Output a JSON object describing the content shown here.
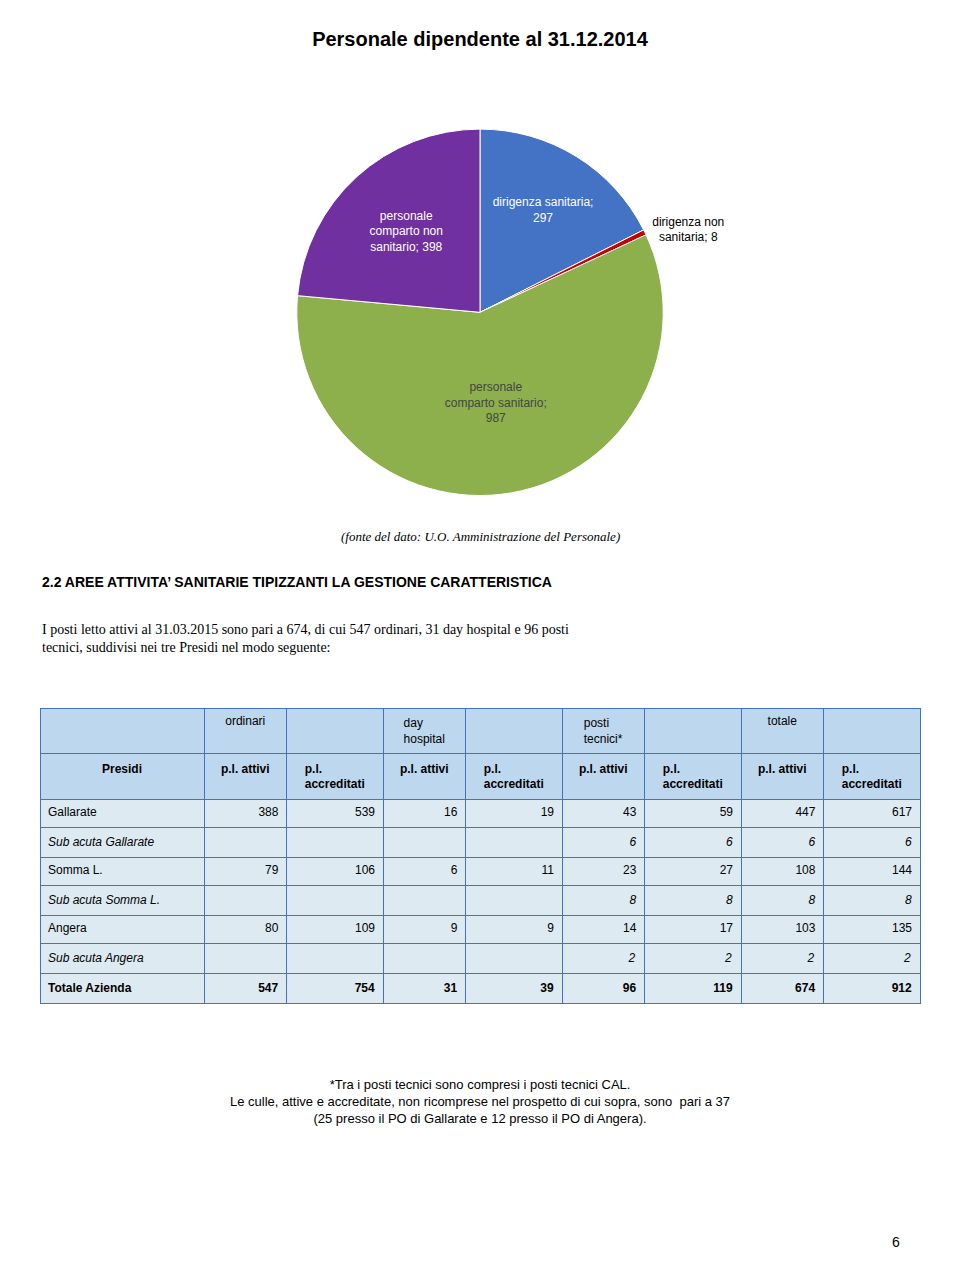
{
  "chart_data": {
    "type": "pie",
    "title": "Personale dipendente al 31.12.2014",
    "categories": [
      "dirigenza sanitaria",
      "dirigenza non sanitaria",
      "personale comparto sanitario",
      "personale comparto non sanitario"
    ],
    "values": [
      297,
      8,
      987,
      398
    ],
    "value_labels": [
      "dirigenza sanitaria;\n297",
      "dirigenza non\nsanitaria; 8",
      "personale\ncomparto sanitario;\n987",
      "personale\ncomparto non\nsanitario; 398"
    ],
    "colors": [
      "#4472C4",
      "#CC0000",
      "#8DB04C",
      "#7030A0"
    ],
    "data_labels": true
  },
  "source": "(fonte del dato: U.O. Amministrazione del Personale)",
  "section_title": "2.2 AREE ATTIVITA’ SANITARIE TIPIZZANTI LA GESTIONE CARATTERISTICA",
  "paragraph": "I posti letto attivi al 31.03.2015 sono pari a 674, di cui 547 ordinari, 31 day hospital e 96 posti\ntecnici, suddivisi nei tre Presidi nel modo seguente:",
  "table": {
    "column_groups": [
      "ordinari",
      "day hospital",
      "posti tecnici*",
      "totale"
    ],
    "columns": [
      "Presidi",
      "p.l. attivi",
      "p.l.\naccreditati",
      "p.l. attivi",
      "p.l.\naccreditati",
      "p.l. attivi",
      "p.l.\naccreditati",
      "p.l. attivi",
      "p.l.\naccreditati"
    ],
    "rows": [
      [
        "Gallarate",
        388,
        539,
        16,
        19,
        43,
        59,
        447,
        617
      ],
      [
        "Sub acuta Gallarate",
        null,
        null,
        null,
        null,
        6,
        6,
        6,
        6
      ],
      [
        "Somma L.",
        79,
        106,
        6,
        11,
        23,
        27,
        108,
        144
      ],
      [
        "Sub acuta Somma L.",
        null,
        null,
        null,
        null,
        8,
        8,
        8,
        8
      ],
      [
        "Angera",
        80,
        109,
        9,
        9,
        14,
        17,
        103,
        135
      ],
      [
        "Sub acuta Angera",
        null,
        null,
        null,
        null,
        2,
        2,
        2,
        2
      ],
      [
        "Totale Azienda",
        547,
        754,
        31,
        39,
        96,
        119,
        674,
        912
      ]
    ],
    "header_color": "#BDD7EE",
    "row_color": "#DEEAF1",
    "border_color": "#4472C4"
  },
  "footnotes": [
    "*Tra i posti tecnici sono compresi i posti tecnici CAL.",
    "Le culle, attive e accreditate, non ricomprese nel prospetto di cui sopra, sono  pari a 37",
    "(25 presso il PO di Gallarate e 12 presso il PO di Angera)."
  ],
  "page_number": "6"
}
